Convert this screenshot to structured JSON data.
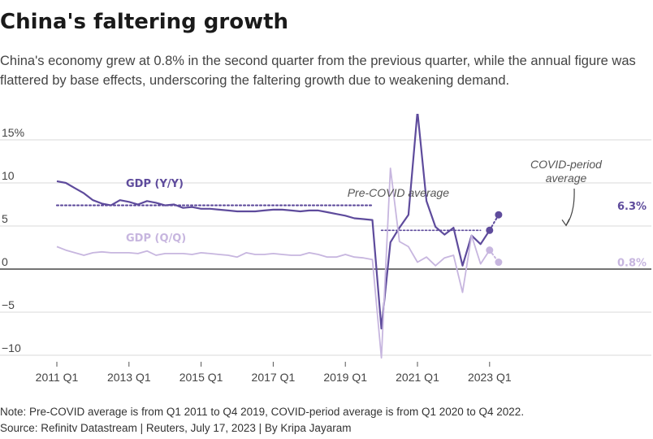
{
  "header": {
    "title": "China's faltering growth",
    "subtitle": "China's economy grew at 0.8% in the second quarter from the previous quarter, while the annual figure was flattered by base effects, underscoring the faltering growth due to weakening demand."
  },
  "footer": {
    "note": "Note: Pre-COVID average is from Q1 2011 to Q4 2019, COVID-period average is from Q1 2020 to Q4 2022.",
    "source": "Source: Refinitv Datastream | Reuters, July 17, 2023 | By Kripa Jayaram"
  },
  "colors": {
    "yy": "#5e4b9c",
    "qq": "#c7b6df",
    "grid": "#d9d9d9",
    "zero": "#222222",
    "avg": "#5e4b9c",
    "text": "#444444"
  },
  "chart_data": {
    "type": "line",
    "x_categories": [
      "2011 Q1",
      "2011 Q2",
      "2011 Q3",
      "2011 Q4",
      "2012 Q1",
      "2012 Q2",
      "2012 Q3",
      "2012 Q4",
      "2013 Q1",
      "2013 Q2",
      "2013 Q3",
      "2013 Q4",
      "2014 Q1",
      "2014 Q2",
      "2014 Q3",
      "2014 Q4",
      "2015 Q1",
      "2015 Q2",
      "2015 Q3",
      "2015 Q4",
      "2016 Q1",
      "2016 Q2",
      "2016 Q3",
      "2016 Q4",
      "2017 Q1",
      "2017 Q2",
      "2017 Q3",
      "2017 Q4",
      "2018 Q1",
      "2018 Q2",
      "2018 Q3",
      "2018 Q4",
      "2019 Q1",
      "2019 Q2",
      "2019 Q3",
      "2019 Q4",
      "2020 Q1",
      "2020 Q2",
      "2020 Q3",
      "2020 Q4",
      "2021 Q1",
      "2021 Q2",
      "2021 Q3",
      "2021 Q4",
      "2022 Q1",
      "2022 Q2",
      "2022 Q3",
      "2022 Q4",
      "2023 Q1",
      "2023 Q2"
    ],
    "x_ticks": [
      "2011 Q1",
      "2013 Q1",
      "2015 Q1",
      "2017 Q1",
      "2019 Q1",
      "2021 Q1",
      "2023 Q1"
    ],
    "y_ticks": [
      {
        "value": 15,
        "label": "15%"
      },
      {
        "value": 10,
        "label": "10"
      },
      {
        "value": 5,
        "label": "5"
      },
      {
        "value": 0,
        "label": "0"
      },
      {
        "value": -5,
        "label": "−5"
      },
      {
        "value": -10,
        "label": "−10"
      }
    ],
    "ylim": [
      -10.5,
      18.5
    ],
    "series": [
      {
        "name": "GDP (Y/Y)",
        "color": "#5e4b9c",
        "values": [
          10.2,
          10.0,
          9.4,
          8.8,
          8.0,
          7.6,
          7.4,
          8.0,
          7.8,
          7.5,
          7.9,
          7.7,
          7.4,
          7.5,
          7.1,
          7.2,
          7.0,
          7.0,
          6.9,
          6.8,
          6.7,
          6.7,
          6.7,
          6.8,
          6.9,
          6.9,
          6.8,
          6.7,
          6.8,
          6.8,
          6.6,
          6.4,
          6.2,
          5.9,
          5.8,
          5.7,
          -6.9,
          3.1,
          4.8,
          6.3,
          18.3,
          7.9,
          4.9,
          4.0,
          4.8,
          0.4,
          3.9,
          2.9,
          4.5,
          6.3
        ],
        "end_label": "6.3%"
      },
      {
        "name": "GDP (Q/Q)",
        "color": "#c7b6df",
        "values": [
          2.6,
          2.2,
          1.9,
          1.6,
          1.9,
          2.0,
          1.9,
          1.9,
          1.9,
          1.8,
          2.1,
          1.6,
          1.8,
          1.8,
          1.8,
          1.7,
          1.9,
          1.8,
          1.7,
          1.6,
          1.4,
          1.9,
          1.7,
          1.7,
          1.8,
          1.7,
          1.6,
          1.6,
          1.9,
          1.7,
          1.4,
          1.4,
          1.7,
          1.4,
          1.3,
          1.1,
          -10.3,
          11.7,
          3.2,
          2.6,
          0.8,
          1.4,
          0.4,
          1.3,
          1.6,
          -2.7,
          3.9,
          0.6,
          2.2,
          0.8
        ],
        "end_label": "0.8%"
      }
    ],
    "averages": [
      {
        "label": "Pre-COVID average",
        "from": "2011 Q1",
        "to": "2019 Q4",
        "value": 7.4
      },
      {
        "label": "COVID-period average",
        "label_lines": [
          "COVID-period",
          "average"
        ],
        "from": "2020 Q1",
        "to": "2022 Q4",
        "value": 4.5
      }
    ]
  }
}
